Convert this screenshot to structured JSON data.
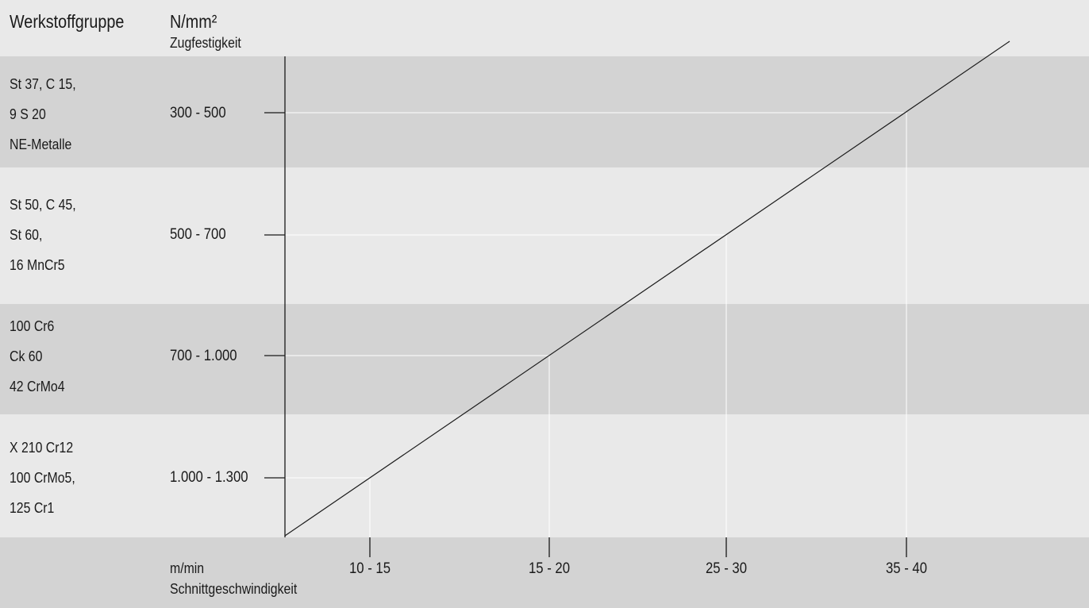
{
  "header": {
    "material_col_label": "Werkstoffgruppe",
    "y_unit": "N/mm²",
    "y_label": "Zugfestigkeit"
  },
  "chart_data": {
    "type": "line",
    "title": "",
    "xlabel": "Schnittgeschwindigkeit",
    "x_unit": "m/min",
    "ylabel": "Zugfestigkeit",
    "y_unit": "N/mm²",
    "rows": [
      {
        "materials": [
          "St 37, C 15,",
          "9 S 20",
          "NE-Metalle"
        ],
        "strength": "300 - 500",
        "speed": "35 - 40"
      },
      {
        "materials": [
          "St 50, C 45,",
          "St 60,",
          "16 MnCr5"
        ],
        "strength": "500 - 700",
        "speed": "25 - 30"
      },
      {
        "materials": [
          "100 Cr6",
          "Ck 60",
          "42 CrMo4"
        ],
        "strength": "700 - 1.000",
        "speed": "15 - 20"
      },
      {
        "materials": [
          "X 210 Cr12",
          "100 CrMo5,",
          "125 Cr1"
        ],
        "strength": "1.000 - 1.300",
        "speed": "10 - 15"
      }
    ],
    "x_ticks": [
      "10 - 15",
      "15 - 20",
      "25 - 30",
      "35 - 40"
    ],
    "grid": true,
    "legend": "none"
  },
  "colors": {
    "band_light": "#e9e9e9",
    "band_dark": "#d3d3d3",
    "axis": "#1a1a1a",
    "guide": "#ffffff"
  }
}
